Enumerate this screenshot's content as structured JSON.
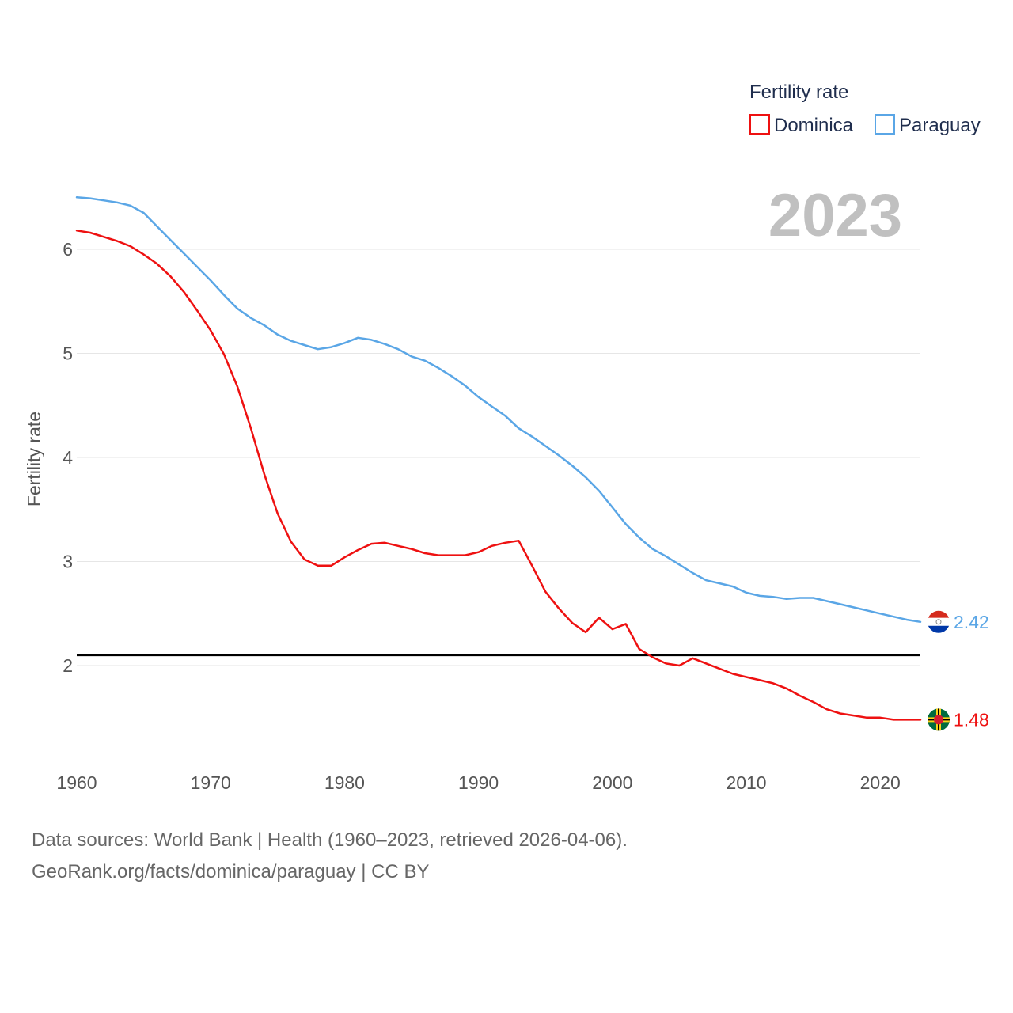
{
  "legend": {
    "title": "Fertility rate",
    "items": [
      {
        "label": "Dominica",
        "color": "#ee1111"
      },
      {
        "label": "Paraguay",
        "color": "#5aa6e6"
      }
    ]
  },
  "year_label": "2023",
  "footer": {
    "line1": "Data sources: World Bank | Health (1960–2023, retrieved 2026-04-06).",
    "line2": "GeoRank.org/facts/dominica/paraguay | CC BY"
  },
  "chart_data": {
    "type": "line",
    "title": "Fertility rate",
    "xlabel": "",
    "ylabel": "Fertility rate",
    "xlim": [
      1960,
      2023
    ],
    "ylim": [
      1.0,
      7.0
    ],
    "xticks": [
      1960,
      1970,
      1980,
      1990,
      2000,
      2010,
      2020
    ],
    "yticks": [
      2,
      3,
      4,
      5,
      6
    ],
    "reference_line": {
      "y": 2.1,
      "color": "#000000"
    },
    "x": [
      1960,
      1961,
      1962,
      1963,
      1964,
      1965,
      1966,
      1967,
      1968,
      1969,
      1970,
      1971,
      1972,
      1973,
      1974,
      1975,
      1976,
      1977,
      1978,
      1979,
      1980,
      1981,
      1982,
      1983,
      1984,
      1985,
      1986,
      1987,
      1988,
      1989,
      1990,
      1991,
      1992,
      1993,
      1994,
      1995,
      1996,
      1997,
      1998,
      1999,
      2000,
      2001,
      2002,
      2003,
      2004,
      2005,
      2006,
      2007,
      2008,
      2009,
      2010,
      2011,
      2012,
      2013,
      2014,
      2015,
      2016,
      2017,
      2018,
      2019,
      2020,
      2021,
      2022,
      2023
    ],
    "series": [
      {
        "name": "Dominica",
        "color": "#ee1111",
        "end_label": "1.48",
        "values": [
          6.18,
          6.16,
          6.12,
          6.08,
          6.03,
          5.95,
          5.86,
          5.74,
          5.59,
          5.41,
          5.22,
          4.99,
          4.68,
          4.28,
          3.84,
          3.46,
          3.19,
          3.02,
          2.96,
          2.96,
          3.04,
          3.11,
          3.17,
          3.18,
          3.15,
          3.12,
          3.08,
          3.06,
          3.06,
          3.06,
          3.09,
          3.15,
          3.18,
          3.2,
          2.96,
          2.71,
          2.55,
          2.41,
          2.32,
          2.46,
          2.35,
          2.4,
          2.16,
          2.08,
          2.02,
          2.0,
          2.07,
          2.02,
          1.97,
          1.92,
          1.89,
          1.86,
          1.83,
          1.78,
          1.71,
          1.65,
          1.58,
          1.54,
          1.52,
          1.5,
          1.5,
          1.48,
          1.48,
          1.48
        ]
      },
      {
        "name": "Paraguay",
        "color": "#5aa6e6",
        "end_label": "2.42",
        "values": [
          6.5,
          6.49,
          6.47,
          6.45,
          6.42,
          6.35,
          6.22,
          6.09,
          5.96,
          5.83,
          5.7,
          5.56,
          5.43,
          5.34,
          5.27,
          5.18,
          5.12,
          5.08,
          5.04,
          5.06,
          5.1,
          5.15,
          5.13,
          5.09,
          5.04,
          4.97,
          4.93,
          4.86,
          4.78,
          4.69,
          4.58,
          4.49,
          4.4,
          4.28,
          4.2,
          4.11,
          4.02,
          3.92,
          3.81,
          3.68,
          3.52,
          3.36,
          3.23,
          3.12,
          3.05,
          2.97,
          2.89,
          2.82,
          2.79,
          2.76,
          2.7,
          2.67,
          2.66,
          2.64,
          2.65,
          2.65,
          2.62,
          2.59,
          2.56,
          2.53,
          2.5,
          2.47,
          2.44,
          2.42
        ]
      }
    ]
  }
}
